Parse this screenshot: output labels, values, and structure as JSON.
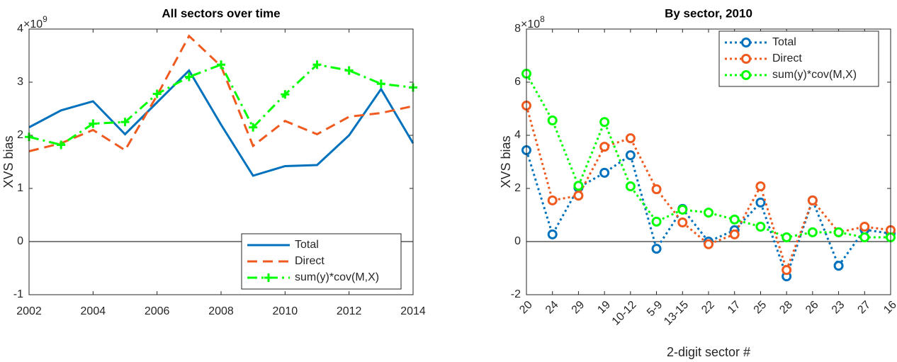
{
  "chart_data": [
    {
      "type": "line",
      "title": "All sectors over time",
      "ylabel": "XVS bias",
      "y_multiplier": {
        "base": "×10",
        "power": "9"
      },
      "x": [
        2002,
        2003,
        2004,
        2005,
        2006,
        2007,
        2008,
        2009,
        2010,
        2011,
        2012,
        2013,
        2014
      ],
      "xlim": [
        2002,
        2014
      ],
      "xticks": [
        2002,
        2004,
        2006,
        2008,
        2010,
        2012,
        2014
      ],
      "ylim": [
        -1,
        4
      ],
      "yticks": [
        -1,
        0,
        1,
        2,
        3,
        4
      ],
      "reference_line": 0,
      "legend": "southeast",
      "series": [
        {
          "name": "Total",
          "color": "#0072bd",
          "line_style": "solid",
          "marker": "none",
          "values": [
            2.15,
            2.47,
            2.64,
            2.02,
            2.62,
            3.22,
            2.2,
            1.24,
            1.42,
            1.44,
            2.0,
            2.87,
            1.85
          ]
        },
        {
          "name": "Direct",
          "color": "#f05a1e",
          "line_style": "dashed",
          "marker": "none",
          "values": [
            1.7,
            1.85,
            2.1,
            1.72,
            2.75,
            3.87,
            3.3,
            1.8,
            2.27,
            2.02,
            2.35,
            2.42,
            2.55
          ]
        },
        {
          "name": "sum(y)*cov(M,X)",
          "color": "#00ff00",
          "line_style": "dashdot",
          "marker": "plus",
          "values": [
            1.97,
            1.82,
            2.22,
            2.25,
            2.78,
            3.1,
            3.33,
            2.15,
            2.77,
            3.33,
            3.22,
            2.97,
            2.9
          ]
        }
      ]
    },
    {
      "type": "line",
      "title": "By sector, 2010",
      "ylabel": "XVS bias",
      "xlabel": "2-digit sector #",
      "y_multiplier": {
        "base": "×10",
        "power": "8"
      },
      "categories": [
        "20",
        "24",
        "29",
        "19",
        "10-12",
        "5-9",
        "13-15",
        "22",
        "17",
        "25",
        "28",
        "26",
        "23",
        "27",
        "16"
      ],
      "ylim": [
        -2,
        8
      ],
      "yticks": [
        -2,
        0,
        2,
        4,
        6,
        8
      ],
      "reference_line": 0,
      "legend": "northeast",
      "series": [
        {
          "name": "Total",
          "color": "#0072bd",
          "line_style": "dotted",
          "marker": "circle",
          "values": [
            3.44,
            0.27,
            2.03,
            2.59,
            3.25,
            -0.27,
            1.23,
            0.0,
            0.43,
            1.47,
            -1.31,
            1.55,
            -0.91,
            0.45,
            0.3
          ]
        },
        {
          "name": "Direct",
          "color": "#f05a1e",
          "line_style": "dotted",
          "marker": "circle",
          "values": [
            5.12,
            1.55,
            1.73,
            3.57,
            3.89,
            1.97,
            0.72,
            -0.1,
            0.27,
            2.08,
            -1.07,
            1.55,
            0.35,
            0.56,
            0.43
          ]
        },
        {
          "name": "sum(y)*cov(M,X)",
          "color": "#00ff00",
          "line_style": "dotted",
          "marker": "circle",
          "values": [
            6.32,
            4.56,
            2.1,
            4.5,
            2.08,
            0.75,
            1.2,
            1.09,
            0.83,
            0.56,
            0.16,
            0.35,
            0.35,
            0.16,
            0.16
          ]
        }
      ]
    }
  ]
}
